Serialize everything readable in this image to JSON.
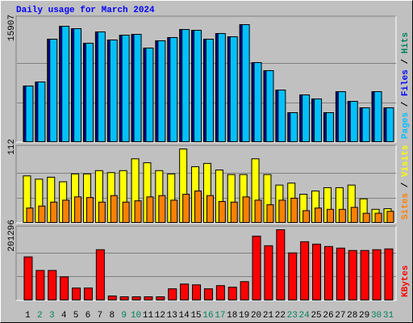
{
  "chart_data": [
    {
      "type": "bar",
      "title": "Daily usage for March 2024",
      "ylim": [
        0,
        15907
      ],
      "yticks": [
        15907
      ],
      "grid_divisions": 3,
      "series": [
        {
          "name": "Hits",
          "color": "#00805c",
          "values": [
            7570,
            8118,
            13932,
            15687,
            15358,
            13383,
            14919,
            13822,
            14480,
            14590,
            12725,
            13712,
            14151,
            15248,
            15139,
            13932,
            14700,
            14261,
            15907,
            10751,
            9654,
            7021,
            3949,
            6363,
            5814,
            3949,
            6801,
            5485,
            4607,
            6801,
            4607
          ]
        },
        {
          "name": "Files",
          "color": "#0000ff",
          "values": [
            7570,
            8118,
            13932,
            15687,
            15358,
            13383,
            14919,
            13822,
            14480,
            14590,
            12725,
            13712,
            14151,
            15248,
            15139,
            13932,
            14700,
            14261,
            15907,
            10751,
            9654,
            7021,
            3949,
            6363,
            5814,
            3949,
            6801,
            5485,
            4607,
            6801,
            4607
          ]
        },
        {
          "name": "Pages",
          "color": "#00c0ff",
          "values": [
            7570,
            8118,
            13932,
            15687,
            15358,
            13383,
            14919,
            13822,
            14480,
            14590,
            12725,
            13712,
            14151,
            15248,
            15139,
            13932,
            14700,
            14261,
            15907,
            10751,
            9654,
            7021,
            3949,
            6363,
            5814,
            3949,
            6801,
            5485,
            4607,
            6801,
            4607
          ]
        }
      ]
    },
    {
      "type": "bar",
      "ylim": [
        0,
        112
      ],
      "yticks": [
        112
      ],
      "grid_divisions": 3,
      "series": [
        {
          "name": "Visits",
          "color": "#ffff00",
          "values": [
            71,
            66,
            69,
            62,
            74,
            74,
            79,
            76,
            79,
            97,
            91,
            79,
            74,
            112,
            85,
            90,
            80,
            73,
            73,
            97,
            73,
            57,
            60,
            43,
            48,
            53,
            53,
            57,
            36,
            20,
            21
          ]
        },
        {
          "name": "Sites",
          "color": "#ff8000",
          "values": [
            22,
            25,
            31,
            34,
            39,
            38,
            31,
            41,
            31,
            33,
            39,
            41,
            34,
            43,
            48,
            41,
            32,
            31,
            39,
            34,
            27,
            34,
            37,
            18,
            22,
            20,
            20,
            23,
            14,
            14,
            17
          ]
        }
      ]
    },
    {
      "type": "bar",
      "ylim": [
        0,
        201296
      ],
      "yticks": [
        201296
      ],
      "grid_divisions": 3,
      "categories": [
        "1",
        "2",
        "3",
        "4",
        "5",
        "6",
        "7",
        "8",
        "9",
        "10",
        "11",
        "12",
        "13",
        "14",
        "15",
        "16",
        "17",
        "18",
        "19",
        "20",
        "21",
        "22",
        "23",
        "24",
        "25",
        "26",
        "27",
        "28",
        "29",
        "30",
        "31"
      ],
      "weekend": [
        false,
        true,
        true,
        false,
        false,
        false,
        false,
        false,
        true,
        true,
        false,
        false,
        false,
        false,
        false,
        true,
        true,
        false,
        false,
        false,
        false,
        false,
        true,
        true,
        false,
        false,
        false,
        false,
        false,
        true,
        true
      ],
      "weekday_label_color": "#000000",
      "weekend_label_color": "#00805c",
      "series": [
        {
          "name": "KBytes",
          "color": "#ff0000",
          "values": [
            123498,
            84619,
            84619,
            66323,
            34305,
            34305,
            144081,
            11435,
            9148,
            9148,
            9148,
            9148,
            32018,
            45740,
            43453,
            32018,
            41166,
            36592,
            52601,
            182960,
            155516,
            201296,
            134933,
            166951,
            160090,
            153229,
            148655,
            141794,
            141794,
            144081,
            146368
          ]
        }
      ]
    }
  ]
}
